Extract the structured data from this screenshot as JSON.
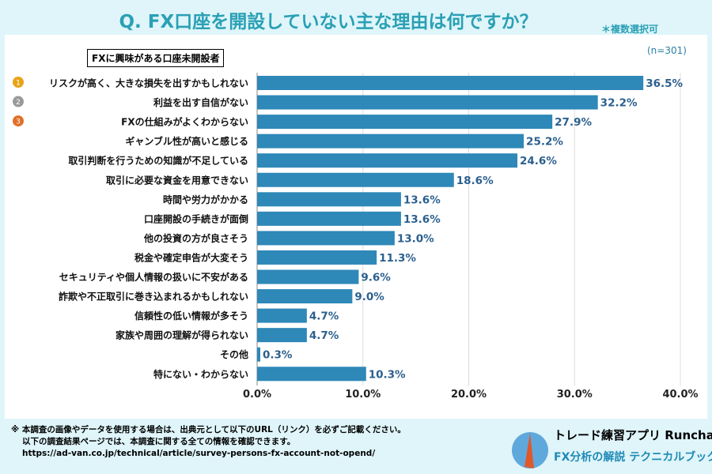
{
  "header": {
    "title": "Q. FX口座を開設していない主な理由は何ですか？",
    "note": "＊複数選択可"
  },
  "chart_data": {
    "type": "bar",
    "orientation": "horizontal",
    "subset_label": "FXに興味がある口座未開設者",
    "sample_size": "(n=301)",
    "categories": [
      "リスクが高く、大きな損失を出すかもしれない",
      "利益を出す自信がない",
      "FXの仕組みがよくわからない",
      "ギャンブル性が高いと感じる",
      "取引判断を行うための知識が不足している",
      "取引に必要な資金を用意できない",
      "時間や労力がかかる",
      "口座開設の手続きが面倒",
      "他の投資の方が良さそう",
      "税金や確定申告が大変そう",
      "セキュリティや個人情報の扱いに不安がある",
      "詐欺や不正取引に巻き込まれるかもしれない",
      "信頼性の低い情報が多そう",
      "家族や周囲の理解が得られない",
      "その他",
      "特にない・わからない"
    ],
    "values": [
      36.5,
      32.2,
      27.9,
      25.2,
      24.6,
      18.6,
      13.6,
      13.6,
      13.0,
      11.3,
      9.6,
      9.0,
      4.7,
      4.7,
      0.3,
      10.3
    ],
    "value_labels": [
      "36.5%",
      "32.2%",
      "27.9%",
      "25.2%",
      "24.6%",
      "18.6%",
      "13.6%",
      "13.6%",
      "13.0%",
      "11.3%",
      "9.6%",
      "9.0%",
      "4.7%",
      "4.7%",
      "0.3%",
      "10.3%"
    ],
    "xlim": [
      0,
      40
    ],
    "xticks": [
      "0.0%",
      "10.0%",
      "20.0%",
      "30.0%",
      "40.0%"
    ],
    "rank_badges": [
      "1",
      "2",
      "3"
    ],
    "grid": true,
    "colors": {
      "bar": "#2e88b8",
      "label": "#2b5f8e",
      "badges": [
        "#e8a317",
        "#9a9a9a",
        "#e0702a"
      ]
    }
  },
  "footer": {
    "notes": [
      "※ 本調査の画像やデータを使用する場合は、出典元として以下のURL（リンク）を必ずご記載ください。",
      "以下の調査結果ページでは、本調査に関する全ての情報を確認できます。",
      "https://ad-van.co.jp/technical/article/survey-persons-fx-account-not-opend/"
    ],
    "brand_line1": "トレード練習アプリ Runcha",
    "brand_line2": "FX分析の解説 テクニカルブック"
  }
}
